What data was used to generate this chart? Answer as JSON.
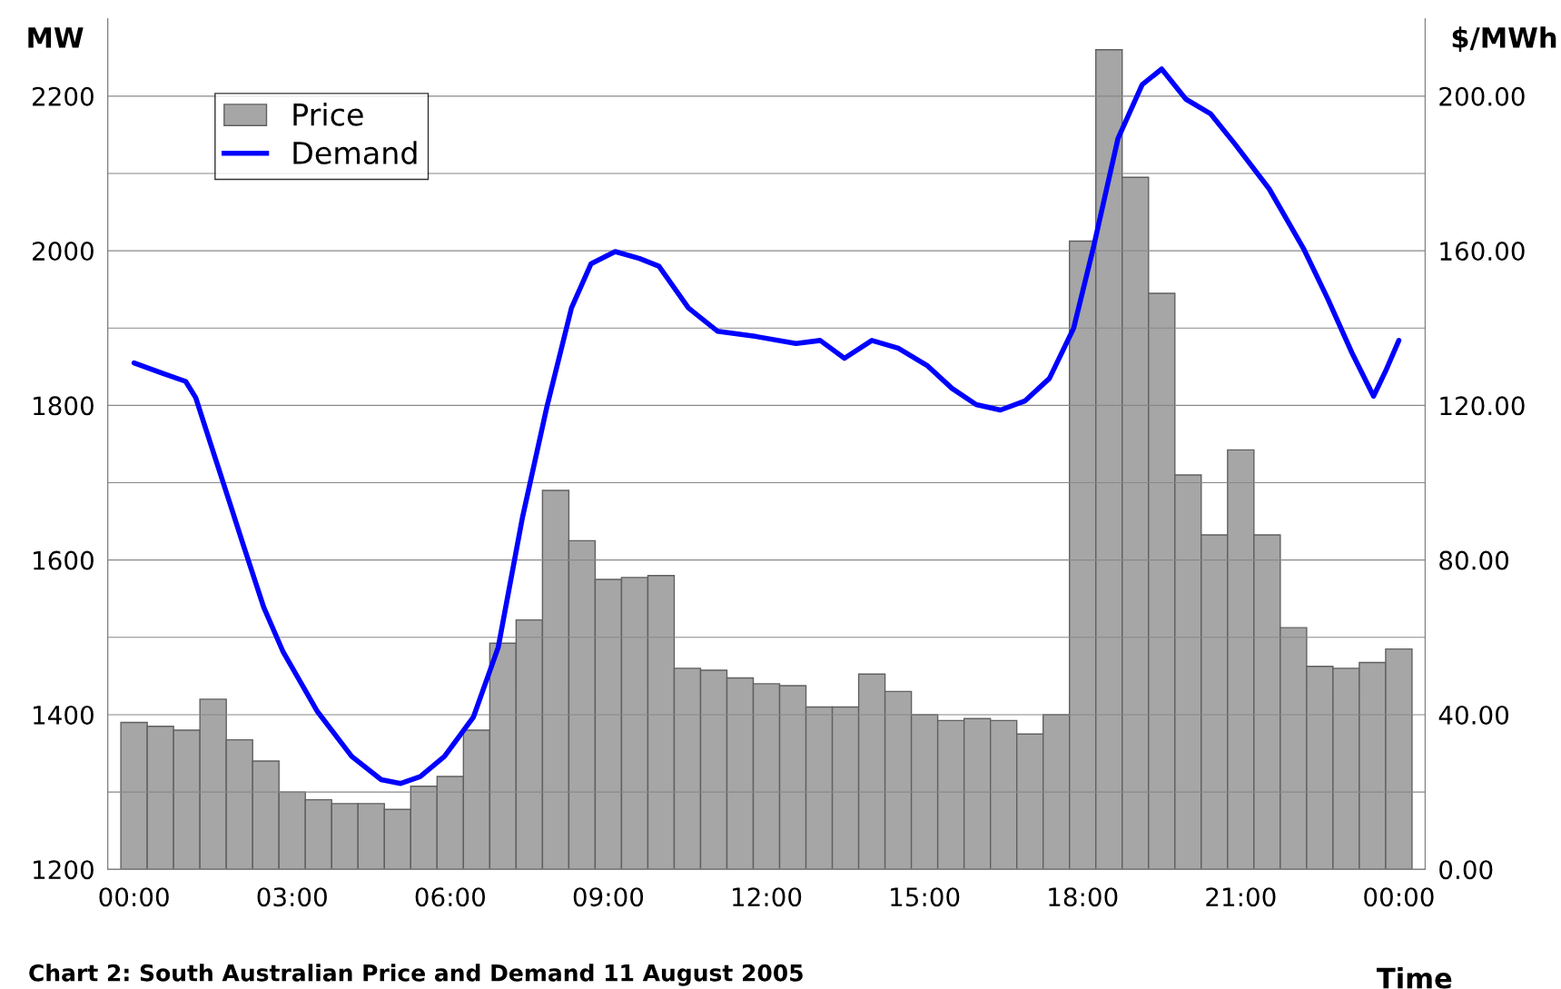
{
  "chart_data": {
    "type": "bar",
    "xlabel": "Time",
    "ylabel": "MW",
    "y2label": "$/MWh",
    "annotations": [
      "Chart 2: South Australian Price and Demand 11 August 2005"
    ],
    "xlim": [
      -0.5,
      24.5
    ],
    "xticks": [
      {
        "value": 0,
        "label": "00:00"
      },
      {
        "value": 3,
        "label": "03:00"
      },
      {
        "value": 6,
        "label": "06:00"
      },
      {
        "value": 9,
        "label": "09:00"
      },
      {
        "value": 12,
        "label": "12:00"
      },
      {
        "value": 15,
        "label": "15:00"
      },
      {
        "value": 18,
        "label": "18:00"
      },
      {
        "value": 21,
        "label": "21:00"
      },
      {
        "value": 24,
        "label": "00:00"
      }
    ],
    "ylim": [
      1200,
      2300
    ],
    "yticks": [
      1200,
      {
        "value": 1300,
        "label": null
      },
      1400,
      {
        "value": 1500,
        "label": null
      },
      1600,
      {
        "value": 1700,
        "label": null
      },
      1800,
      {
        "value": 1900,
        "label": null
      },
      2000,
      {
        "value": 2100,
        "label": null
      },
      2200
    ],
    "y2lim": [
      0,
      220
    ],
    "y2ticks": [
      {
        "value": 0,
        "label": "0.00"
      },
      {
        "value": 40,
        "label": "40.00"
      },
      {
        "value": 80,
        "label": "80.00"
      },
      {
        "value": 120,
        "label": "120.00"
      },
      {
        "value": 160,
        "label": "160.00"
      },
      {
        "value": 200,
        "label": "200.00"
      }
    ],
    "grid": "y",
    "legend": "top left",
    "series": [
      {
        "name": "Price",
        "axis": "y2",
        "color": "#a6a6a6",
        "x": [
          0,
          0.5,
          1,
          1.5,
          2,
          2.5,
          3,
          3.5,
          4,
          4.5,
          5,
          5.5,
          6,
          6.5,
          7,
          7.5,
          8,
          8.5,
          9,
          9.5,
          10,
          10.5,
          11,
          11.5,
          12,
          12.5,
          13,
          13.5,
          14,
          14.5,
          15,
          15.5,
          16,
          16.5,
          17,
          17.5,
          18,
          18.5,
          19,
          19.5,
          20,
          20.5,
          21,
          21.5,
          22,
          22.5,
          23,
          23.5,
          24
        ],
        "values": [
          38,
          37,
          36,
          44,
          33.5,
          28,
          20,
          18,
          17,
          17,
          15.5,
          21.5,
          24,
          36,
          58.5,
          64.5,
          98,
          85,
          75,
          75.5,
          76,
          52,
          51.5,
          49.5,
          48,
          47.5,
          42,
          42,
          50.5,
          46,
          40,
          38.5,
          39,
          38.5,
          35,
          40,
          162.5,
          212,
          179,
          149,
          102,
          86.5,
          108.5,
          86.5,
          62.5,
          52.5,
          52,
          53.5,
          57
        ]
      },
      {
        "name": "Demand",
        "type": "line",
        "axis": "y",
        "color": "#0000ff",
        "x": [
          0,
          0.52,
          0.98,
          1.17,
          1.54,
          2.09,
          2.46,
          2.83,
          3.48,
          4.13,
          4.69,
          5.06,
          5.43,
          5.89,
          6.44,
          6.91,
          7.37,
          7.83,
          8.3,
          8.67,
          9.13,
          9.59,
          9.96,
          10.52,
          11.07,
          11.81,
          12.56,
          13.02,
          13.48,
          14,
          14.5,
          15.06,
          15.52,
          15.98,
          16.44,
          16.91,
          17.37,
          17.83,
          18.2,
          18.67,
          19.13,
          19.5,
          19.96,
          20.43,
          20.89,
          21.54,
          22.19,
          22.65,
          23.11,
          23.52,
          23.76,
          24
        ],
        "values": [
          1855,
          1842,
          1831,
          1810,
          1732,
          1616,
          1539,
          1481,
          1404,
          1346,
          1316,
          1311,
          1320,
          1346,
          1397,
          1487,
          1655,
          1797,
          1926,
          1983,
          1999,
          1990,
          1980,
          1926,
          1896,
          1889,
          1880,
          1884,
          1861,
          1884,
          1874,
          1851,
          1822,
          1801,
          1794,
          1806,
          1835,
          1900,
          2003,
          2145,
          2215,
          2235,
          2196,
          2177,
          2138,
          2080,
          2003,
          1938,
          1868,
          1812,
          1846,
          1884
        ]
      }
    ]
  }
}
